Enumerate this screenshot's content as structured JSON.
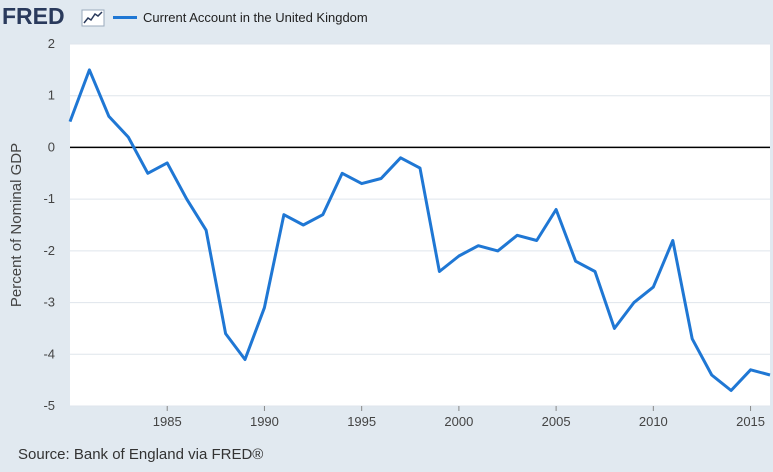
{
  "branding": {
    "logo_text": "FRED",
    "logo_icon": "line-chart-icon"
  },
  "source": "Source: Bank of England via FRED®",
  "colors": {
    "line": "#1f77d4",
    "plot_bg": "#ffffff",
    "page_bg": "#e1e9f0",
    "grid": "#dfe5ec",
    "zero_line": "#000000",
    "logo": "#2a3a5c"
  },
  "chart_data": {
    "type": "line",
    "title": "",
    "xlabel": "",
    "ylabel": "Percent of Nominal GDP",
    "xlim": [
      1980,
      2016
    ],
    "ylim": [
      -5,
      2
    ],
    "grid": true,
    "legend_position": "top-left",
    "y_ticks": [
      2,
      1,
      0,
      -1,
      -2,
      -3,
      -4,
      -5
    ],
    "x_ticks": [
      1985,
      1990,
      1995,
      2000,
      2005,
      2010,
      2015
    ],
    "series": [
      {
        "name": "Current Account in the United Kingdom",
        "x": [
          1980,
          1981,
          1982,
          1983,
          1984,
          1985,
          1986,
          1987,
          1988,
          1989,
          1990,
          1991,
          1992,
          1993,
          1994,
          1995,
          1996,
          1997,
          1998,
          1999,
          2000,
          2001,
          2002,
          2003,
          2004,
          2005,
          2006,
          2007,
          2008,
          2009,
          2010,
          2011,
          2012,
          2013,
          2014,
          2015,
          2016
        ],
        "values": [
          0.5,
          1.5,
          0.6,
          0.2,
          -0.5,
          -0.3,
          -1.0,
          -1.6,
          -3.6,
          -4.1,
          -3.1,
          -1.3,
          -1.5,
          -1.3,
          -0.5,
          -0.7,
          -0.6,
          -0.2,
          -0.4,
          -2.4,
          -2.1,
          -1.9,
          -2.0,
          -1.7,
          -1.8,
          -1.2,
          -2.2,
          -2.4,
          -3.5,
          -3.0,
          -2.7,
          -1.8,
          -3.7,
          -4.4,
          -4.7,
          -4.3,
          -4.4
        ]
      }
    ]
  }
}
